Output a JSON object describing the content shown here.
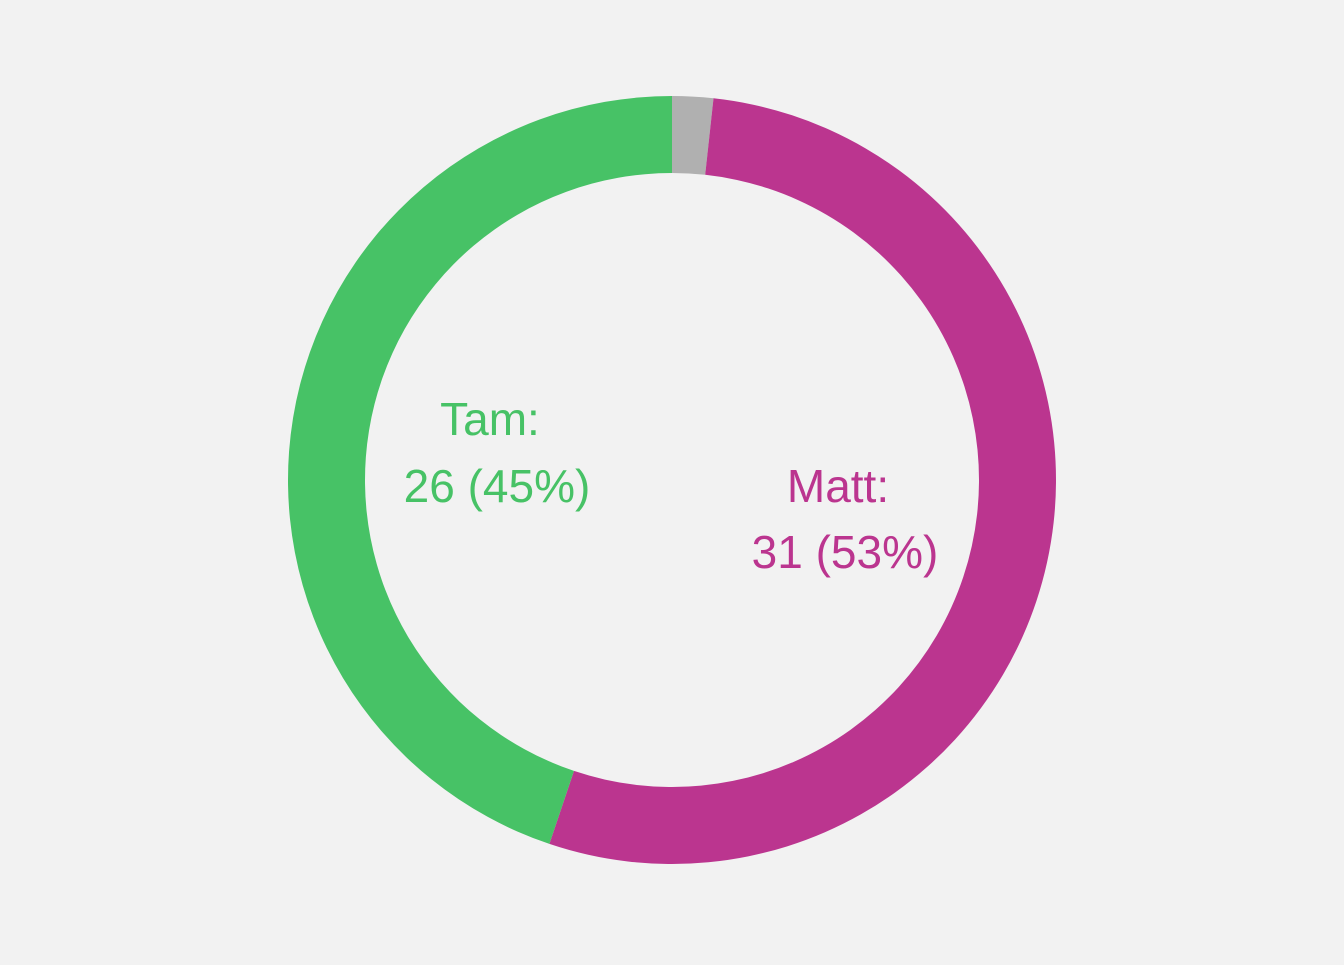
{
  "chart_data": {
    "type": "pie",
    "variant": "donut",
    "start_angle_deg": 0,
    "direction": "clockwise",
    "background": "#f2f2f2",
    "slices": [
      {
        "name": "",
        "value": 1,
        "color": "#b0b0b0",
        "label_lines": []
      },
      {
        "name": "Matt",
        "value": 31,
        "percent": "53%",
        "color": "#bb358f",
        "label_lines": [
          "Matt:",
          "31 (53%)"
        ]
      },
      {
        "name": "Tam",
        "value": 26,
        "percent": "45%",
        "color": "#47c266",
        "label_lines": [
          "Tam:",
          "26 (45%)"
        ]
      }
    ]
  }
}
